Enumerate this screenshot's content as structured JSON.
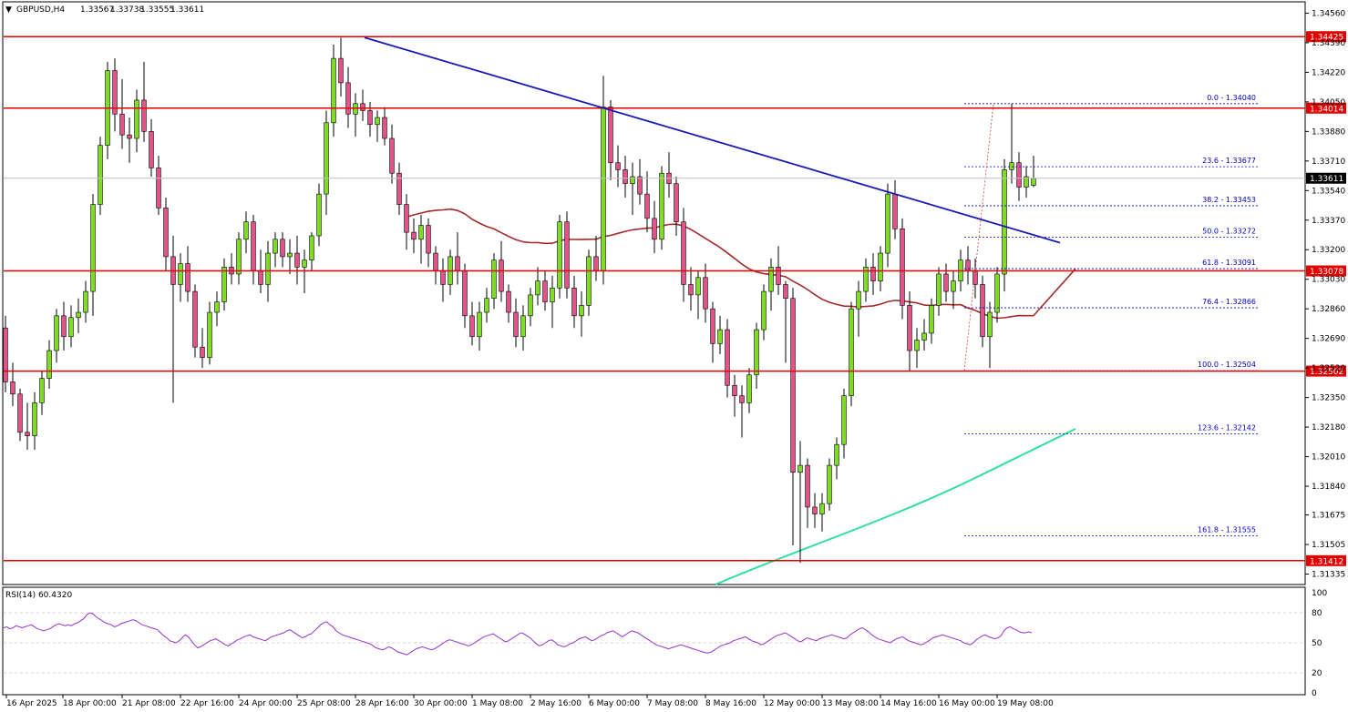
{
  "header": {
    "symbol": "GBPUSD,H4",
    "o": "1.33567",
    "h": "1.33738",
    "l": "1.33555",
    "c": "1.33611"
  },
  "rsi": {
    "label": "RSI(14) 60.4320",
    "levels": [
      "100",
      "80",
      "50",
      "20",
      "0"
    ],
    "values": [
      65,
      66,
      64,
      65,
      67,
      66,
      65,
      66,
      67,
      68,
      66,
      64,
      63,
      62,
      63,
      64,
      66,
      68,
      69,
      68,
      67,
      68,
      67,
      69,
      70,
      72,
      74,
      78,
      80,
      79,
      76,
      74,
      72,
      70,
      69,
      68,
      66,
      67,
      69,
      70,
      71,
      72,
      73,
      72,
      70,
      68,
      67,
      66,
      65,
      64,
      63,
      60,
      57,
      55,
      52,
      51,
      50,
      52,
      55,
      58,
      56,
      52,
      48,
      45,
      46,
      48,
      50,
      52,
      53,
      54,
      52,
      50,
      48,
      47,
      49,
      51,
      53,
      54,
      56,
      57,
      58,
      56,
      55,
      54,
      53,
      52,
      54,
      56,
      57,
      58,
      59,
      60,
      62,
      63,
      61,
      59,
      57,
      55,
      56,
      58,
      59,
      62,
      65,
      68,
      70,
      71,
      68,
      66,
      62,
      60,
      58,
      57,
      56,
      55,
      54,
      53,
      52,
      51,
      50,
      49,
      47,
      45,
      44,
      43,
      44,
      46,
      45,
      43,
      41,
      40,
      39,
      38,
      40,
      42,
      44,
      45,
      46,
      45,
      44,
      43,
      44,
      46,
      48,
      50,
      52,
      53,
      52,
      51,
      50,
      49,
      48,
      47,
      48,
      50,
      52,
      54,
      56,
      57,
      58,
      59,
      57,
      55,
      53,
      51,
      52,
      54,
      56,
      58,
      60,
      59,
      57,
      55,
      52,
      49,
      47,
      48,
      50,
      52,
      53,
      51,
      48,
      47,
      46,
      47,
      49,
      50,
      52,
      54,
      55,
      56,
      54,
      52,
      53,
      55,
      57,
      58,
      60,
      61,
      62,
      60,
      58,
      56,
      58,
      60,
      62,
      61,
      60,
      58,
      56,
      54,
      52,
      50,
      48,
      47,
      46,
      45,
      44,
      45,
      46,
      47,
      48,
      47,
      46,
      45,
      44,
      43,
      42,
      41,
      40,
      40,
      41,
      43,
      45,
      47,
      48,
      49,
      50,
      52,
      53,
      54,
      55,
      56,
      54,
      52,
      51,
      50,
      48,
      49,
      51,
      53,
      55,
      57,
      58,
      59,
      60,
      58,
      56,
      54,
      52,
      51,
      53,
      55,
      54,
      53,
      52,
      54,
      55,
      56,
      57,
      58,
      57,
      56,
      55,
      54,
      55,
      58,
      60,
      62,
      64,
      65,
      63,
      61,
      58,
      56,
      54,
      53,
      52,
      51,
      50,
      52,
      54,
      55,
      56,
      54,
      52,
      51,
      50,
      49,
      48,
      49,
      51,
      53,
      55,
      56,
      57,
      58,
      57,
      56,
      55,
      54,
      53,
      52,
      50,
      49,
      48,
      50,
      53,
      55,
      57,
      58,
      56,
      55,
      54,
      55,
      57,
      62,
      65,
      66,
      64,
      63,
      61,
      60,
      60,
      61,
      60
    ]
  },
  "price_axis": [
    "1.34560",
    "1.34390",
    "1.34220",
    "1.34050",
    "1.33880",
    "1.33710",
    "1.33540",
    "1.33370",
    "1.33200",
    "1.33030",
    "1.32860",
    "1.32690",
    "1.32520",
    "1.32350",
    "1.32180",
    "1.32010",
    "1.31840",
    "1.31675",
    "1.31505",
    "1.31335"
  ],
  "time_axis": [
    "16 Apr 2025",
    "18 Apr 00:00",
    "21 Apr 08:00",
    "22 Apr 16:00",
    "24 Apr 00:00",
    "25 Apr 08:00",
    "28 Apr 16:00",
    "30 Apr 00:00",
    "1 May 08:00",
    "2 May 16:00",
    "6 May 00:00",
    "7 May 08:00",
    "8 May 16:00",
    "12 May 00:00",
    "13 May 08:00",
    "14 May 16:00",
    "16 May 00:00",
    "19 May 08:00"
  ],
  "levels": {
    "hlines": [
      "1.34425",
      "1.34014",
      "1.33078",
      "1.32502",
      "1.31412"
    ],
    "current": "1.33611"
  },
  "fibonacci": [
    {
      "label": "0.0 - 1.34040",
      "price": 1.3404
    },
    {
      "label": "23.6 - 1.33677",
      "price": 1.33677
    },
    {
      "label": "38.2 - 1.33453",
      "price": 1.33453
    },
    {
      "label": "50.0 - 1.33272",
      "price": 1.33272
    },
    {
      "label": "61.8 - 1.33091",
      "price": 1.33091
    },
    {
      "label": "76.4 - 1.32866",
      "price": 1.32866
    },
    {
      "label": "100.0 - 1.32504",
      "price": 1.32504
    },
    {
      "label": "123.6 - 1.32142",
      "price": 1.32142
    },
    {
      "label": "161.8 - 1.31555",
      "price": 1.31555
    }
  ],
  "colors": {
    "bull": "#7fdd2a",
    "bear": "#e0548a",
    "hline": "#e00000",
    "trendline": "#1a1ab8",
    "ma_slow": "#a52a2a",
    "ma_long": "#2de0a0",
    "rsi": "#9932cc",
    "fib": "#0000c8"
  },
  "chart_data": {
    "type": "candlestick",
    "symbol": "GBPUSD",
    "timeframe": "H4",
    "ylim": [
      1.3128,
      1.3462
    ],
    "candles": [
      [
        1.3275,
        1.3282,
        1.3238,
        1.3244
      ],
      [
        1.3244,
        1.3255,
        1.323,
        1.3237
      ],
      [
        1.3237,
        1.324,
        1.321,
        1.3215
      ],
      [
        1.3215,
        1.3232,
        1.3205,
        1.3213
      ],
      [
        1.3213,
        1.3238,
        1.3205,
        1.3232
      ],
      [
        1.3232,
        1.325,
        1.3225,
        1.3246
      ],
      [
        1.3246,
        1.3268,
        1.324,
        1.3262
      ],
      [
        1.3262,
        1.3286,
        1.3255,
        1.3282
      ],
      [
        1.3282,
        1.329,
        1.3262,
        1.327
      ],
      [
        1.327,
        1.3288,
        1.3264,
        1.3281
      ],
      [
        1.3281,
        1.3292,
        1.3272,
        1.3284
      ],
      [
        1.3284,
        1.3302,
        1.3278,
        1.3296
      ],
      [
        1.3296,
        1.3352,
        1.3282,
        1.3346
      ],
      [
        1.3346,
        1.3385,
        1.334,
        1.338
      ],
      [
        1.338,
        1.3428,
        1.3372,
        1.3423
      ],
      [
        1.3423,
        1.343,
        1.3388,
        1.3398
      ],
      [
        1.3398,
        1.3418,
        1.3378,
        1.3386
      ],
      [
        1.3386,
        1.3396,
        1.337,
        1.3384
      ],
      [
        1.3384,
        1.3412,
        1.3376,
        1.3406
      ],
      [
        1.3406,
        1.3428,
        1.3382,
        1.3388
      ],
      [
        1.3388,
        1.3395,
        1.3362,
        1.3367
      ],
      [
        1.3367,
        1.3374,
        1.334,
        1.3344
      ],
      [
        1.3344,
        1.335,
        1.3308,
        1.3316
      ],
      [
        1.3316,
        1.3328,
        1.3232,
        1.33
      ],
      [
        1.33,
        1.3318,
        1.329,
        1.3312
      ],
      [
        1.3312,
        1.3322,
        1.329,
        1.3296
      ],
      [
        1.3296,
        1.33,
        1.3258,
        1.3264
      ],
      [
        1.3264,
        1.3275,
        1.3252,
        1.3258
      ],
      [
        1.3258,
        1.329,
        1.3254,
        1.3284
      ],
      [
        1.3284,
        1.3296,
        1.3276,
        1.329
      ],
      [
        1.329,
        1.3315,
        1.3285,
        1.331
      ],
      [
        1.331,
        1.3318,
        1.33,
        1.3306
      ],
      [
        1.3306,
        1.333,
        1.33,
        1.3326
      ],
      [
        1.3326,
        1.3342,
        1.3318,
        1.3336
      ],
      [
        1.3336,
        1.334,
        1.33,
        1.3308
      ],
      [
        1.3308,
        1.332,
        1.3295,
        1.33
      ],
      [
        1.33,
        1.3325,
        1.329,
        1.3318
      ],
      [
        1.3318,
        1.333,
        1.331,
        1.3326
      ],
      [
        1.3326,
        1.333,
        1.331,
        1.3316
      ],
      [
        1.3316,
        1.3326,
        1.3306,
        1.3318
      ],
      [
        1.3318,
        1.3328,
        1.33,
        1.331
      ],
      [
        1.331,
        1.332,
        1.3295,
        1.3314
      ],
      [
        1.3314,
        1.333,
        1.3308,
        1.3328
      ],
      [
        1.3328,
        1.3358,
        1.3322,
        1.3352
      ],
      [
        1.3352,
        1.34,
        1.334,
        1.3393
      ],
      [
        1.3393,
        1.3438,
        1.3385,
        1.343
      ],
      [
        1.343,
        1.3442,
        1.3408,
        1.3416
      ],
      [
        1.3416,
        1.3425,
        1.339,
        1.3398
      ],
      [
        1.3398,
        1.341,
        1.3385,
        1.3404
      ],
      [
        1.3404,
        1.3412,
        1.3394,
        1.34
      ],
      [
        1.34,
        1.3405,
        1.3385,
        1.3392
      ],
      [
        1.3392,
        1.34,
        1.3382,
        1.3396
      ],
      [
        1.3396,
        1.3402,
        1.338,
        1.3384
      ],
      [
        1.3384,
        1.3392,
        1.3358,
        1.3364
      ],
      [
        1.3364,
        1.337,
        1.334,
        1.3346
      ],
      [
        1.3346,
        1.3352,
        1.332,
        1.333
      ],
      [
        1.333,
        1.3338,
        1.3318,
        1.3326
      ],
      [
        1.3326,
        1.334,
        1.3312,
        1.3334
      ],
      [
        1.3334,
        1.3338,
        1.331,
        1.3318
      ],
      [
        1.3318,
        1.3322,
        1.33,
        1.3308
      ],
      [
        1.3308,
        1.3315,
        1.329,
        1.33
      ],
      [
        1.33,
        1.332,
        1.3294,
        1.3316
      ],
      [
        1.3316,
        1.333,
        1.33,
        1.3308
      ],
      [
        1.3308,
        1.3312,
        1.3275,
        1.3282
      ],
      [
        1.3282,
        1.329,
        1.3265,
        1.327
      ],
      [
        1.327,
        1.329,
        1.3262,
        1.3284
      ],
      [
        1.3284,
        1.3298,
        1.3278,
        1.3292
      ],
      [
        1.3292,
        1.3318,
        1.3286,
        1.3314
      ],
      [
        1.3314,
        1.3325,
        1.329,
        1.3296
      ],
      [
        1.3296,
        1.33,
        1.3278,
        1.3284
      ],
      [
        1.3284,
        1.3292,
        1.3264,
        1.327
      ],
      [
        1.327,
        1.3288,
        1.3262,
        1.3282
      ],
      [
        1.3282,
        1.3298,
        1.3276,
        1.3294
      ],
      [
        1.3294,
        1.331,
        1.3288,
        1.3302
      ],
      [
        1.3302,
        1.3308,
        1.3285,
        1.329
      ],
      [
        1.329,
        1.3305,
        1.3275,
        1.3298
      ],
      [
        1.3298,
        1.334,
        1.3292,
        1.3336
      ],
      [
        1.3336,
        1.3342,
        1.3292,
        1.3298
      ],
      [
        1.3298,
        1.3305,
        1.3275,
        1.3282
      ],
      [
        1.3282,
        1.3296,
        1.327,
        1.3288
      ],
      [
        1.3288,
        1.332,
        1.3282,
        1.3316
      ],
      [
        1.3316,
        1.3328,
        1.3302,
        1.3308
      ],
      [
        1.3308,
        1.342,
        1.33,
        1.3402
      ],
      [
        1.3402,
        1.3406,
        1.336,
        1.337
      ],
      [
        1.337,
        1.338,
        1.3356,
        1.3366
      ],
      [
        1.3366,
        1.3374,
        1.335,
        1.3358
      ],
      [
        1.3358,
        1.337,
        1.334,
        1.3362
      ],
      [
        1.3362,
        1.3372,
        1.3346,
        1.3352
      ],
      [
        1.3352,
        1.3365,
        1.333,
        1.3338
      ],
      [
        1.3338,
        1.3348,
        1.3318,
        1.3326
      ],
      [
        1.3326,
        1.3368,
        1.332,
        1.3364
      ],
      [
        1.3364,
        1.3376,
        1.335,
        1.3358
      ],
      [
        1.3358,
        1.3362,
        1.3328,
        1.3336
      ],
      [
        1.3336,
        1.3344,
        1.329,
        1.33
      ],
      [
        1.33,
        1.331,
        1.3285,
        1.3294
      ],
      [
        1.3294,
        1.3308,
        1.328,
        1.3304
      ],
      [
        1.3304,
        1.3312,
        1.3278,
        1.3286
      ],
      [
        1.3286,
        1.329,
        1.3255,
        1.3266
      ],
      [
        1.3266,
        1.3282,
        1.326,
        1.3274
      ],
      [
        1.3274,
        1.328,
        1.3235,
        1.3242
      ],
      [
        1.3242,
        1.3248,
        1.3224,
        1.3236
      ],
      [
        1.3236,
        1.3242,
        1.3212,
        1.3232
      ],
      [
        1.3232,
        1.3252,
        1.3226,
        1.3248
      ],
      [
        1.3248,
        1.3278,
        1.324,
        1.3274
      ],
      [
        1.3274,
        1.33,
        1.3268,
        1.3296
      ],
      [
        1.3296,
        1.3315,
        1.3285,
        1.331
      ],
      [
        1.331,
        1.3322,
        1.3294,
        1.33
      ],
      [
        1.33,
        1.3302,
        1.3255,
        1.3292
      ],
      [
        1.3292,
        1.3298,
        1.315,
        1.3192
      ],
      [
        1.3192,
        1.321,
        1.314,
        1.3196
      ],
      [
        1.3196,
        1.32,
        1.316,
        1.3172
      ],
      [
        1.3172,
        1.318,
        1.316,
        1.3168
      ],
      [
        1.3168,
        1.318,
        1.3158,
        1.3174
      ],
      [
        1.3174,
        1.32,
        1.317,
        1.3196
      ],
      [
        1.3196,
        1.3212,
        1.3188,
        1.3208
      ],
      [
        1.3208,
        1.324,
        1.32,
        1.3236
      ],
      [
        1.3236,
        1.329,
        1.323,
        1.3286
      ],
      [
        1.3286,
        1.3302,
        1.327,
        1.3296
      ],
      [
        1.3296,
        1.3315,
        1.329,
        1.331
      ],
      [
        1.331,
        1.3318,
        1.3294,
        1.3302
      ],
      [
        1.3302,
        1.3322,
        1.3296,
        1.3318
      ],
      [
        1.3318,
        1.3358,
        1.331,
        1.3352
      ],
      [
        1.3352,
        1.336,
        1.3326,
        1.3332
      ],
      [
        1.3332,
        1.3338,
        1.328,
        1.3288
      ],
      [
        1.3288,
        1.3296,
        1.325,
        1.3262
      ],
      [
        1.3262,
        1.3275,
        1.3252,
        1.3268
      ],
      [
        1.3268,
        1.328,
        1.3262,
        1.3272
      ],
      [
        1.3272,
        1.3292,
        1.3266,
        1.3288
      ],
      [
        1.3288,
        1.331,
        1.3282,
        1.3306
      ],
      [
        1.3306,
        1.3312,
        1.329,
        1.3296
      ],
      [
        1.3296,
        1.3308,
        1.3286,
        1.3302
      ],
      [
        1.3302,
        1.332,
        1.3296,
        1.3314
      ],
      [
        1.3314,
        1.3322,
        1.33,
        1.3308
      ],
      [
        1.3308,
        1.3315,
        1.3292,
        1.33
      ],
      [
        1.33,
        1.3305,
        1.3264,
        1.327
      ],
      [
        1.327,
        1.329,
        1.3252,
        1.3284
      ],
      [
        1.3284,
        1.331,
        1.3278,
        1.3306
      ],
      [
        1.3306,
        1.3372,
        1.3296,
        1.3366
      ],
      [
        1.3366,
        1.3404,
        1.3358,
        1.337
      ],
      [
        1.337,
        1.3376,
        1.3348,
        1.3356
      ],
      [
        1.3356,
        1.3368,
        1.335,
        1.3362
      ],
      [
        1.3357,
        1.3374,
        1.3356,
        1.3361
      ]
    ],
    "trendline": [
      [
        1.3442,
        0
      ],
      [
        1.3324,
        1
      ]
    ],
    "hlines": [
      1.34425,
      1.34014,
      1.33078,
      1.32502,
      1.31412
    ],
    "current_price": 1.33611
  }
}
